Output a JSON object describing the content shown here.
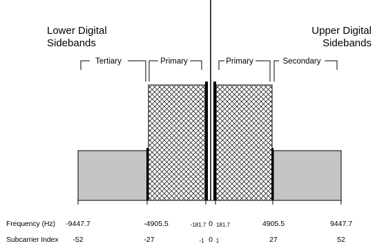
{
  "headers": {
    "lower_line1": "Lower Digital",
    "lower_line2": "Sidebands",
    "upper_line1": "Upper Digital",
    "upper_line2": "Sidebands"
  },
  "brackets": [
    {
      "label": "Tertiary"
    },
    {
      "label": "Primary"
    },
    {
      "label": "Primary"
    },
    {
      "label": "Secondary"
    }
  ],
  "rows": {
    "frequency_label": "Frequency (Hz)",
    "subcarrier_label": "Subcarrier Index"
  },
  "ticks": [
    {
      "frequency": "-9447.7",
      "subcarrier": "-52"
    },
    {
      "frequency": "-4905.5",
      "subcarrier": "-27"
    },
    {
      "frequency": "-181.7",
      "subcarrier": "-1"
    },
    {
      "frequency": "0",
      "subcarrier": "0"
    },
    {
      "frequency": "181.7",
      "subcarrier": "1"
    },
    {
      "frequency": "4905.5",
      "subcarrier": "27"
    },
    {
      "frequency": "9447.7",
      "subcarrier": "52"
    }
  ],
  "colors": {
    "gray_fill": "#c4c4c4",
    "hatch_line": "#000000",
    "background": "#ffffff"
  }
}
